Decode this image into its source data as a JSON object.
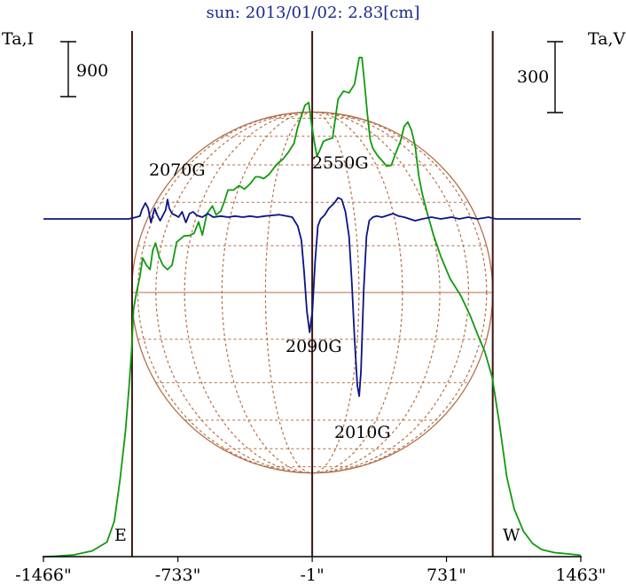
{
  "chart_data": {
    "type": "line",
    "title": "sun: 2013/01/02: 2.83[cm]",
    "left_axis_label": "Ta,I",
    "right_axis_label": "Ta,V",
    "left_scale_bar": "900",
    "right_scale_bar": "300",
    "x_unit": "arcsec",
    "xlim": [
      -1466,
      1463
    ],
    "x_tick_labels": [
      "-1466\"",
      "-733\"",
      "-1\"",
      "731\"",
      "1463\""
    ],
    "x_ticks": [
      -1466,
      -733,
      -1,
      731,
      1463
    ],
    "vertical_lines_x": [
      -983,
      -1,
      983
    ],
    "limb_labels": {
      "east": "E",
      "west": "W"
    },
    "colors": {
      "intensity": "#109a10",
      "polarization": "#0a1486",
      "disk": "#b46e46",
      "frame": "#000000",
      "markers": "#401414",
      "title": "#1a2a8a"
    },
    "annotations": [
      "2070G",
      "2550G",
      "2090G",
      "2010G"
    ],
    "series": [
      {
        "key": "I",
        "points": [
          [
            -1466,
            0
          ],
          [
            -1400,
            5
          ],
          [
            -1300,
            20
          ],
          [
            -1200,
            65
          ],
          [
            -1120,
            165
          ],
          [
            -1080,
            400
          ],
          [
            -1050,
            850
          ],
          [
            -1020,
            1400
          ],
          [
            -1000,
            1900
          ],
          [
            -985,
            2350
          ],
          [
            -975,
            2800
          ],
          [
            -960,
            2980
          ],
          [
            -940,
            3170
          ],
          [
            -925,
            3380
          ],
          [
            -905,
            3300
          ],
          [
            -885,
            3250
          ],
          [
            -870,
            3470
          ],
          [
            -855,
            3550
          ],
          [
            -835,
            3390
          ],
          [
            -815,
            3300
          ],
          [
            -790,
            3250
          ],
          [
            -765,
            3300
          ],
          [
            -740,
            3560
          ],
          [
            -700,
            3630
          ],
          [
            -670,
            3635
          ],
          [
            -645,
            3660
          ],
          [
            -620,
            3790
          ],
          [
            -600,
            3640
          ],
          [
            -575,
            3880
          ],
          [
            -545,
            3970
          ],
          [
            -525,
            3870
          ],
          [
            -500,
            3910
          ],
          [
            -480,
            4020
          ],
          [
            -460,
            4150
          ],
          [
            -430,
            4150
          ],
          [
            -400,
            4200
          ],
          [
            -370,
            4160
          ],
          [
            -340,
            4220
          ],
          [
            -310,
            4300
          ],
          [
            -290,
            4300
          ],
          [
            -265,
            4280
          ],
          [
            -235,
            4330
          ],
          [
            -210,
            4400
          ],
          [
            -190,
            4450
          ],
          [
            -160,
            4500
          ],
          [
            -130,
            4580
          ],
          [
            -100,
            4680
          ],
          [
            -80,
            4860
          ],
          [
            -60,
            4990
          ],
          [
            -40,
            5110
          ],
          [
            -20,
            5140
          ],
          [
            -5,
            4900
          ],
          [
            10,
            4700
          ],
          [
            25,
            4530
          ],
          [
            40,
            4600
          ],
          [
            60,
            4700
          ],
          [
            80,
            4720
          ],
          [
            110,
            4740
          ],
          [
            140,
            5180
          ],
          [
            170,
            5270
          ],
          [
            200,
            5250
          ],
          [
            230,
            5350
          ],
          [
            255,
            5650
          ],
          [
            270,
            5650
          ],
          [
            285,
            5340
          ],
          [
            300,
            5000
          ],
          [
            315,
            4720
          ],
          [
            330,
            4620
          ],
          [
            355,
            4540
          ],
          [
            385,
            4470
          ],
          [
            405,
            4420
          ],
          [
            430,
            4430
          ],
          [
            455,
            4570
          ],
          [
            480,
            4700
          ],
          [
            500,
            4870
          ],
          [
            520,
            4920
          ],
          [
            540,
            4830
          ],
          [
            560,
            4650
          ],
          [
            580,
            4310
          ],
          [
            600,
            4100
          ],
          [
            630,
            3860
          ],
          [
            660,
            3640
          ],
          [
            700,
            3400
          ],
          [
            750,
            3150
          ],
          [
            810,
            2950
          ],
          [
            860,
            2730
          ],
          [
            900,
            2520
          ],
          [
            940,
            2320
          ],
          [
            980,
            2030
          ],
          [
            1020,
            1500
          ],
          [
            1060,
            900
          ],
          [
            1100,
            540
          ],
          [
            1150,
            290
          ],
          [
            1200,
            150
          ],
          [
            1250,
            80
          ],
          [
            1320,
            45
          ],
          [
            1400,
            30
          ],
          [
            1463,
            15
          ]
        ]
      },
      {
        "key": "V",
        "points": [
          [
            -1466,
            0
          ],
          [
            -1000,
            0
          ],
          [
            -960,
            5
          ],
          [
            -940,
            8
          ],
          [
            -930,
            25
          ],
          [
            -910,
            45
          ],
          [
            -895,
            30
          ],
          [
            -880,
            -10
          ],
          [
            -860,
            30
          ],
          [
            -845,
            10
          ],
          [
            -830,
            -5
          ],
          [
            -815,
            10
          ],
          [
            -800,
            25
          ],
          [
            -790,
            55
          ],
          [
            -780,
            30
          ],
          [
            -765,
            15
          ],
          [
            -745,
            10
          ],
          [
            -730,
            5
          ],
          [
            -710,
            20
          ],
          [
            -690,
            -10
          ],
          [
            -670,
            15
          ],
          [
            -650,
            20
          ],
          [
            -630,
            10
          ],
          [
            -600,
            5
          ],
          [
            -570,
            15
          ],
          [
            -540,
            5
          ],
          [
            -500,
            8
          ],
          [
            -460,
            5
          ],
          [
            -420,
            8
          ],
          [
            -380,
            5
          ],
          [
            -340,
            8
          ],
          [
            -300,
            5
          ],
          [
            -260,
            8
          ],
          [
            -220,
            10
          ],
          [
            -180,
            12
          ],
          [
            -140,
            8
          ],
          [
            -110,
            5
          ],
          [
            -80,
            -20
          ],
          [
            -60,
            -60
          ],
          [
            -45,
            -150
          ],
          [
            -30,
            -260
          ],
          [
            -15,
            -320
          ],
          [
            0,
            -260
          ],
          [
            15,
            -120
          ],
          [
            30,
            -20
          ],
          [
            45,
            0
          ],
          [
            65,
            10
          ],
          [
            90,
            30
          ],
          [
            120,
            45
          ],
          [
            140,
            60
          ],
          [
            160,
            55
          ],
          [
            180,
            20
          ],
          [
            200,
            -50
          ],
          [
            215,
            -180
          ],
          [
            230,
            -340
          ],
          [
            245,
            -470
          ],
          [
            255,
            -500
          ],
          [
            265,
            -430
          ],
          [
            280,
            -200
          ],
          [
            295,
            -50
          ],
          [
            310,
            -5
          ],
          [
            330,
            5
          ],
          [
            350,
            8
          ],
          [
            380,
            5
          ],
          [
            410,
            10
          ],
          [
            440,
            15
          ],
          [
            470,
            8
          ],
          [
            500,
            5
          ],
          [
            530,
            0
          ],
          [
            560,
            -5
          ],
          [
            600,
            0
          ],
          [
            650,
            5
          ],
          [
            700,
            0
          ],
          [
            760,
            5
          ],
          [
            800,
            0
          ],
          [
            850,
            5
          ],
          [
            900,
            0
          ],
          [
            960,
            5
          ],
          [
            1000,
            0
          ],
          [
            1463,
            0
          ]
        ]
      }
    ],
    "y_range_I": [
      0,
      5900
    ],
    "y_range_V": [
      -540,
      630
    ],
    "v_baseline_position": "near y = 4740 on I scale"
  }
}
